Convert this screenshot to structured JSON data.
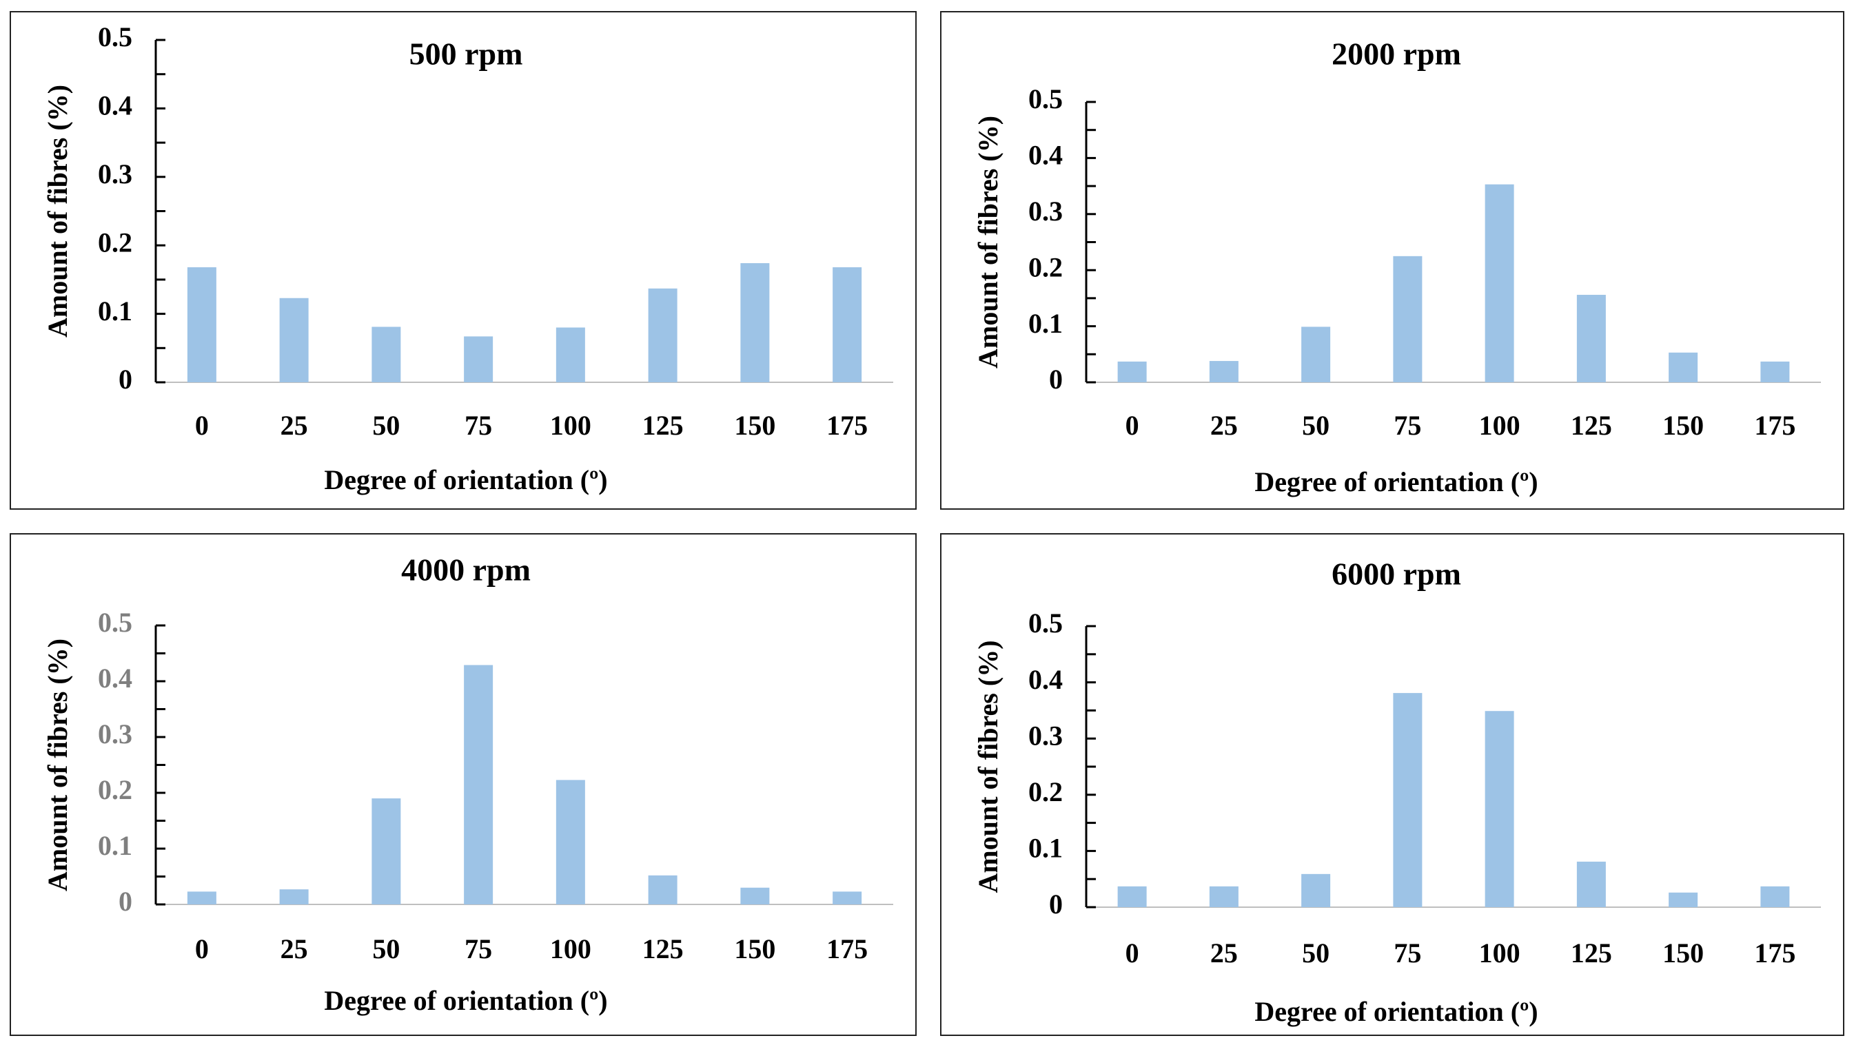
{
  "colors": {
    "bar": "#9dc3e6",
    "tick_dark": "#000000",
    "tick_gray": "#7f7f7f"
  },
  "chart_data": [
    {
      "type": "bar",
      "title": "500 rpm",
      "xlabel": "Degree of orientation (º)",
      "ylabel": "Amount of fibres (%)",
      "categories": [
        "0",
        "25",
        "50",
        "75",
        "100",
        "125",
        "150",
        "175"
      ],
      "values": [
        0.168,
        0.123,
        0.081,
        0.067,
        0.08,
        0.137,
        0.174,
        0.168
      ],
      "ylim": [
        0,
        0.5
      ],
      "yticks": [
        "0",
        "0.1",
        "0.2",
        "0.3",
        "0.4",
        "0.5"
      ],
      "ytick_color": "dark"
    },
    {
      "type": "bar",
      "title": "2000 rpm",
      "xlabel": "Degree of orientation (º)",
      "ylabel": "Amount of fibres (%)",
      "categories": [
        "0",
        "25",
        "50",
        "75",
        "100",
        "125",
        "150",
        "175"
      ],
      "values": [
        0.037,
        0.038,
        0.099,
        0.225,
        0.353,
        0.156,
        0.053,
        0.037
      ],
      "ylim": [
        0,
        0.5
      ],
      "yticks": [
        "0",
        "0.1",
        "0.2",
        "0.3",
        "0.4",
        "0.5"
      ],
      "ytick_color": "dark"
    },
    {
      "type": "bar",
      "title": "4000 rpm",
      "xlabel": "Degree of orientation (º)",
      "ylabel": "Amount of fibres (%)",
      "categories": [
        "0",
        "25",
        "50",
        "75",
        "100",
        "125",
        "150",
        "175"
      ],
      "values": [
        0.023,
        0.027,
        0.19,
        0.429,
        0.223,
        0.052,
        0.03,
        0.023
      ],
      "ylim": [
        0,
        0.5
      ],
      "yticks": [
        "0",
        "0.1",
        "0.2",
        "0.3",
        "0.4",
        "0.5"
      ],
      "ytick_color": "gray"
    },
    {
      "type": "bar",
      "title": "6000 rpm",
      "xlabel": "Degree of orientation (º)",
      "ylabel": "Amount of fibres (%)",
      "categories": [
        "0",
        "25",
        "50",
        "75",
        "100",
        "125",
        "150",
        "175"
      ],
      "values": [
        0.037,
        0.037,
        0.059,
        0.381,
        0.349,
        0.081,
        0.026,
        0.037
      ],
      "ylim": [
        0,
        0.5
      ],
      "yticks": [
        "0",
        "0.1",
        "0.2",
        "0.3",
        "0.4",
        "0.5"
      ],
      "ytick_color": "dark"
    }
  ]
}
